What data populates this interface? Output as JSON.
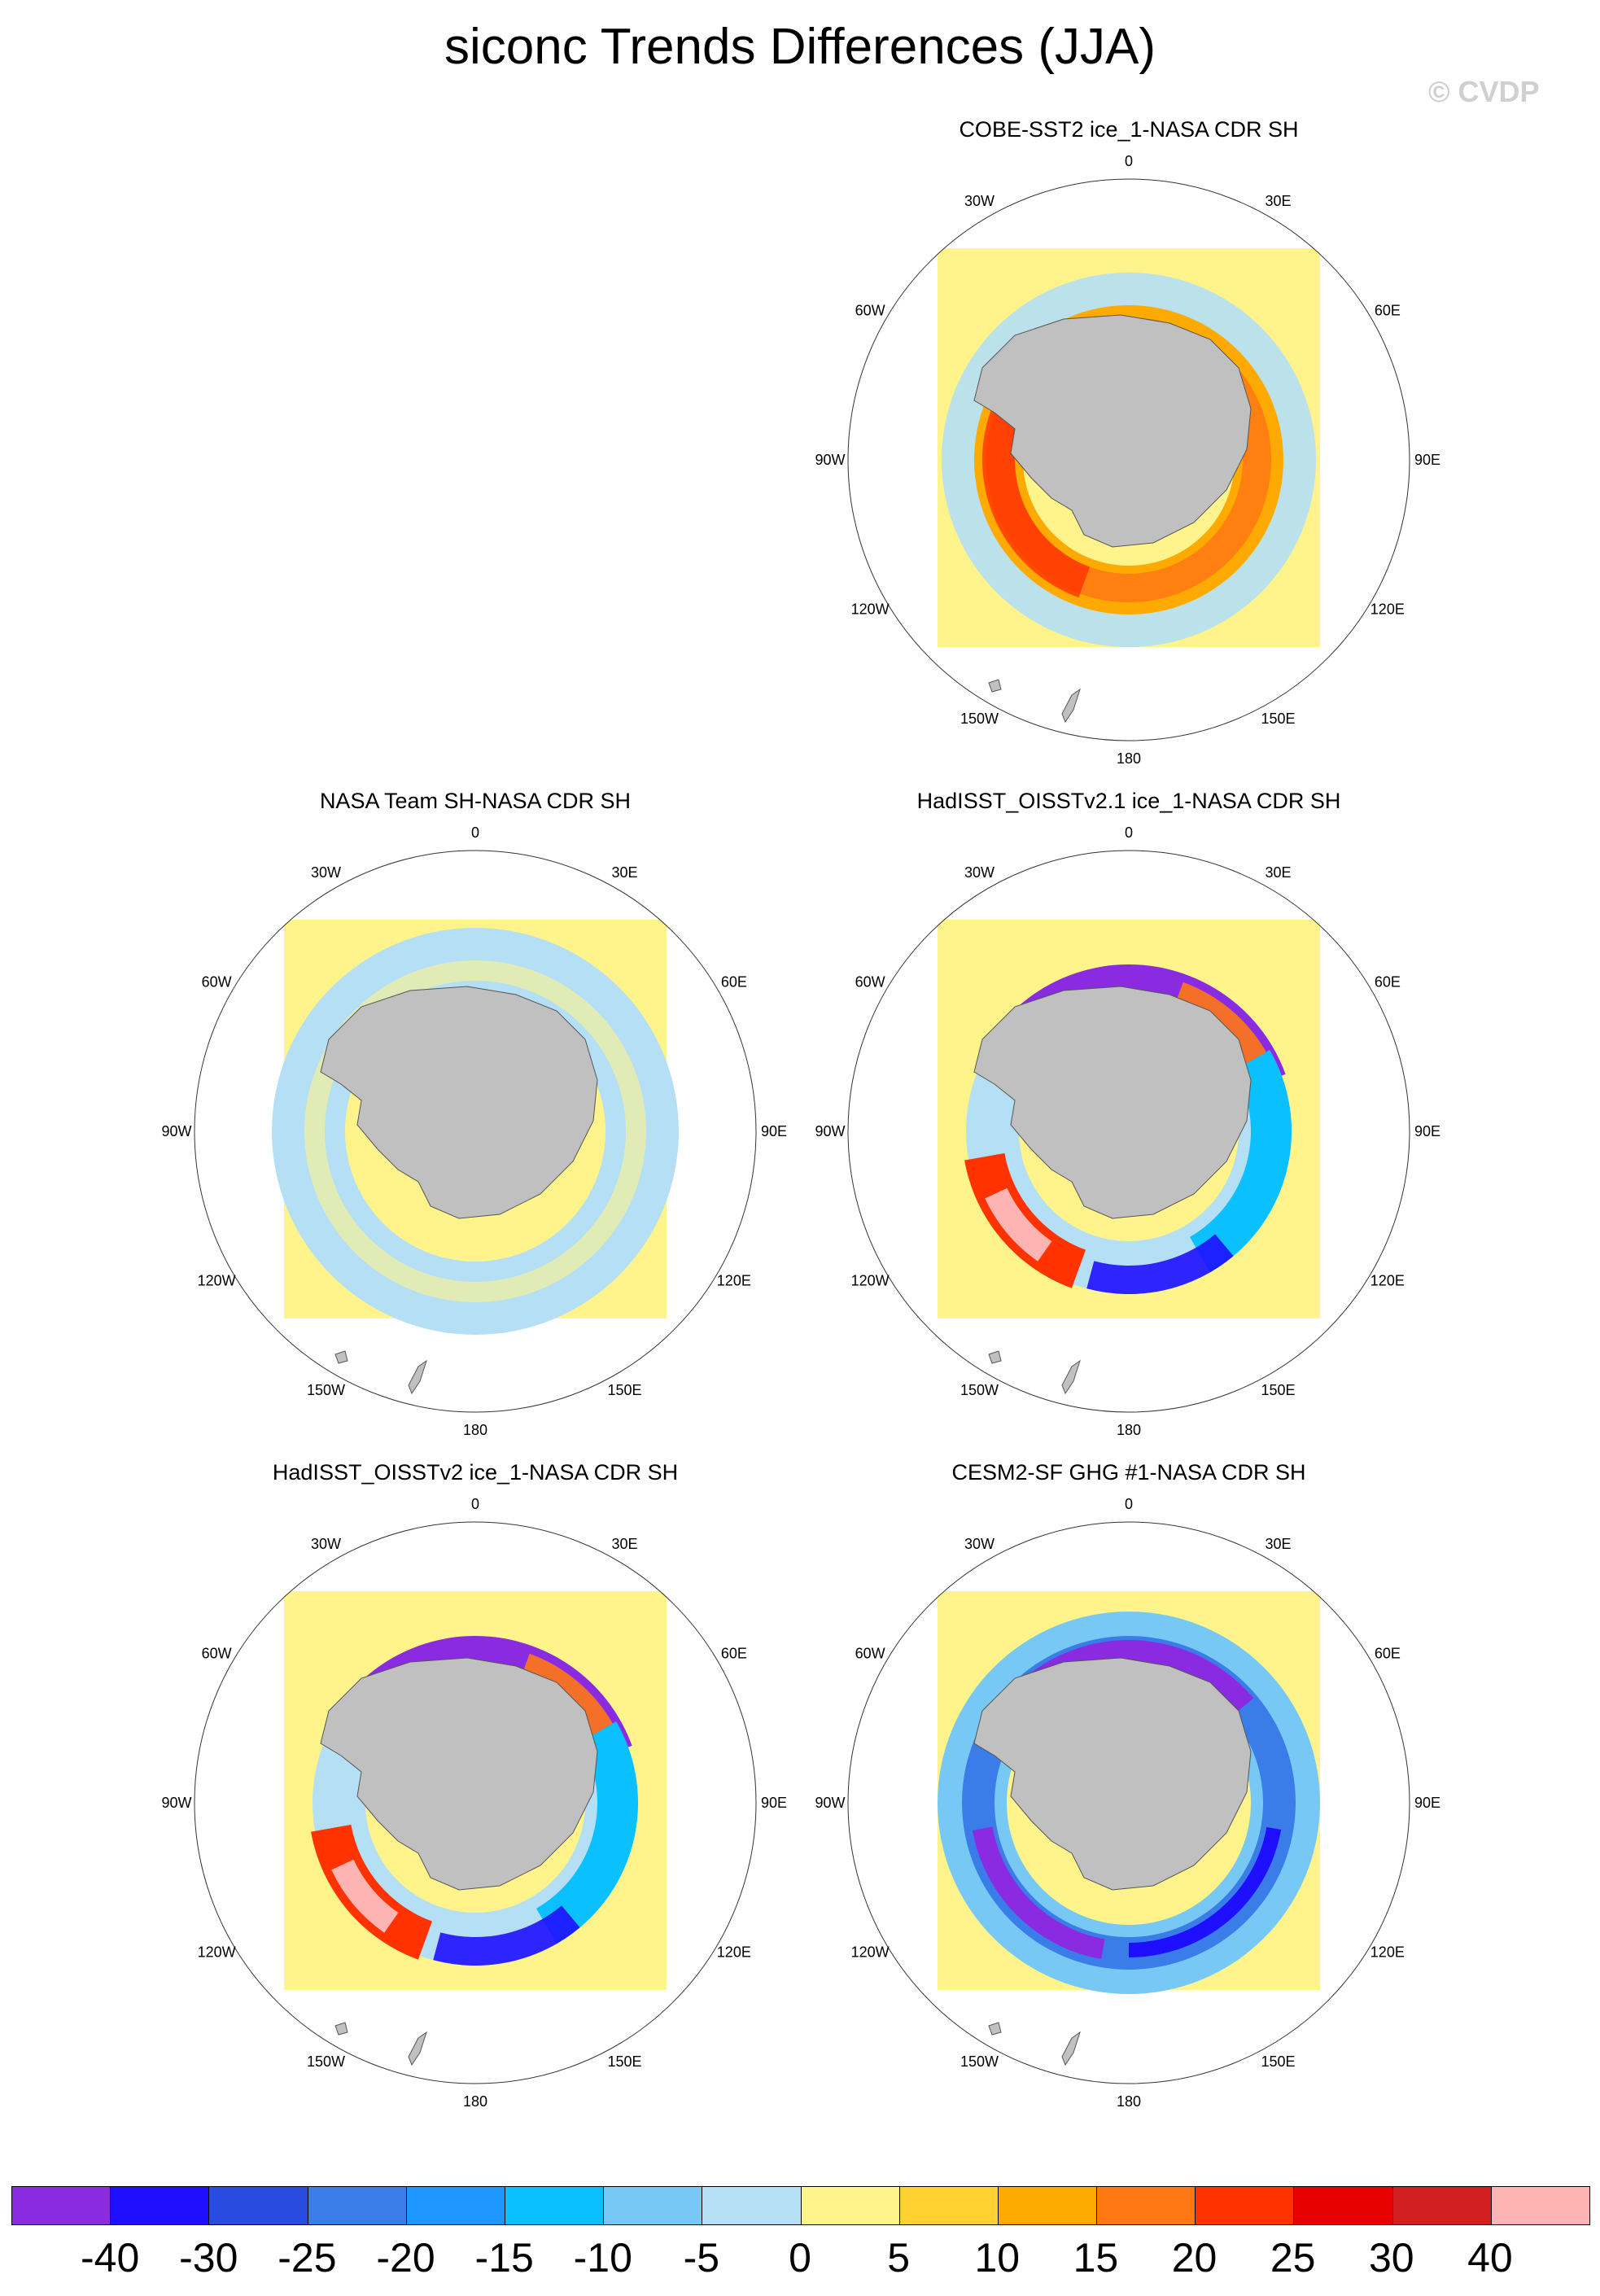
{
  "title": "siconc Trends Differences (JJA)",
  "watermark": "© CVDP",
  "lon_labels": [
    "0",
    "30E",
    "60E",
    "90E",
    "120E",
    "150E",
    "180",
    "150W",
    "120W",
    "90W",
    "60W",
    "30W"
  ],
  "panels": [
    {
      "title": "COBE-SST2 ice_1-NASA CDR SH",
      "pattern": "positive-ring"
    },
    {
      "title": "NASA Team SH-NASA CDR SH",
      "pattern": "weak-negative"
    },
    {
      "title": "HadISST_OISSTv2.1 ice_1-NASA CDR SH",
      "pattern": "mixed-strong"
    },
    {
      "title": "HadISST_OISSTv2 ice_1-NASA CDR SH",
      "pattern": "mixed-strong"
    },
    {
      "title": "CESM2-SF GHG #1-NASA CDR SH",
      "pattern": "negative-ring"
    }
  ],
  "colorbar": {
    "colors": [
      "#8a2be2",
      "#1e0fff",
      "#2a4be0",
      "#3a7de8",
      "#1e96ff",
      "#0ac0ff",
      "#78c8f5",
      "#b4dff5",
      "#fff48c",
      "#ffd232",
      "#ffaa00",
      "#ff7814",
      "#ff3200",
      "#e60000",
      "#d21e1e",
      "#ffb4b4"
    ],
    "labels": [
      "-40",
      "-30",
      "-25",
      "-20",
      "-15",
      "-10",
      "-5",
      "0",
      "5",
      "10",
      "15",
      "20",
      "25",
      "30",
      "40"
    ]
  },
  "colors": {
    "land": "#c0c0c0",
    "background_field": "#fff48c"
  }
}
